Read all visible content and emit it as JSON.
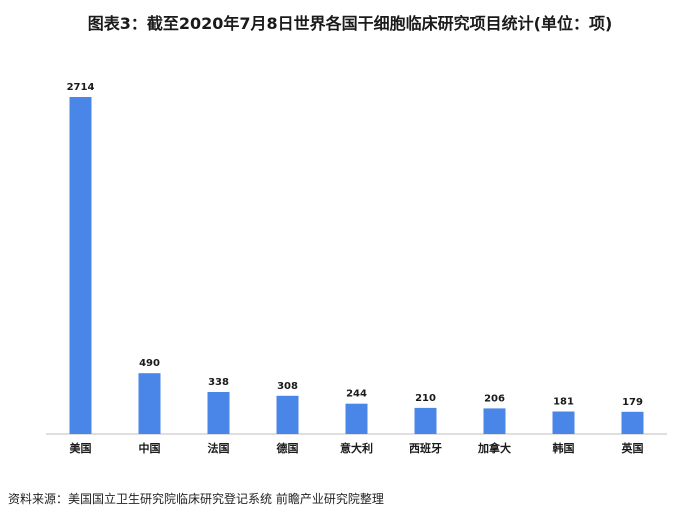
{
  "title": "图表3：截至2020年7月8日世界各国干细胞临床研究项目统计(单位：项)",
  "source": "资料来源：美国国立卫生研究院临床研究登记系统 前瞻产业研究院整理",
  "colors": {
    "bar": "#4a86e8",
    "axis": "#bfbfbf"
  },
  "chart_data": {
    "type": "bar",
    "title": "图表3：截至2020年7月8日世界各国干细胞临床研究项目统计(单位：项)",
    "categories": [
      "美国",
      "中国",
      "法国",
      "德国",
      "意大利",
      "西班牙",
      "加拿大",
      "韩国",
      "英国"
    ],
    "values": [
      2714,
      490,
      338,
      308,
      244,
      210,
      206,
      181,
      179
    ],
    "xlabel": "",
    "ylabel": "",
    "ylim": [
      0,
      2714
    ],
    "grid": false,
    "legend": "none"
  }
}
